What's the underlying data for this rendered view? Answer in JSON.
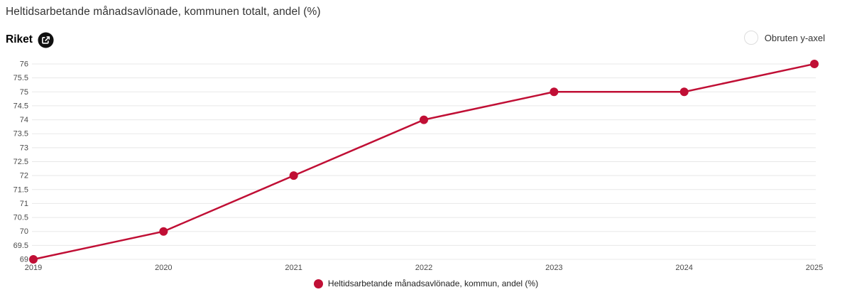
{
  "header": {
    "title": "Heltidsarbetande månadsavlönade, kommunen totalt, andel (%)",
    "region_label": "Riket"
  },
  "controls": {
    "unbroken_y_axis_label": "Obruten y-axel",
    "unbroken_y_axis_checked": false
  },
  "colors": {
    "series": "#c00f35",
    "grid": "#e8e8e8",
    "axis_text": "#4a4a4a",
    "title_text": "#333333"
  },
  "chart_data": {
    "type": "line",
    "title": "Heltidsarbetande månadsavlönade, kommunen totalt, andel (%)",
    "x": [
      2019,
      2020,
      2021,
      2022,
      2023,
      2024,
      2025
    ],
    "series": [
      {
        "name": "Heltidsarbetande månadsavlönade, kommun, andel (%)",
        "values": [
          69,
          70,
          72,
          74,
          75,
          75,
          76
        ],
        "color": "#c00f35"
      }
    ],
    "xlabel": "",
    "ylabel": "",
    "ylim": [
      69,
      76
    ],
    "ytick_step": 0.5,
    "grid": true,
    "legend_position": "bottom"
  },
  "legend": {
    "label": "Heltidsarbetande månadsavlönade, kommun, andel (%)"
  }
}
